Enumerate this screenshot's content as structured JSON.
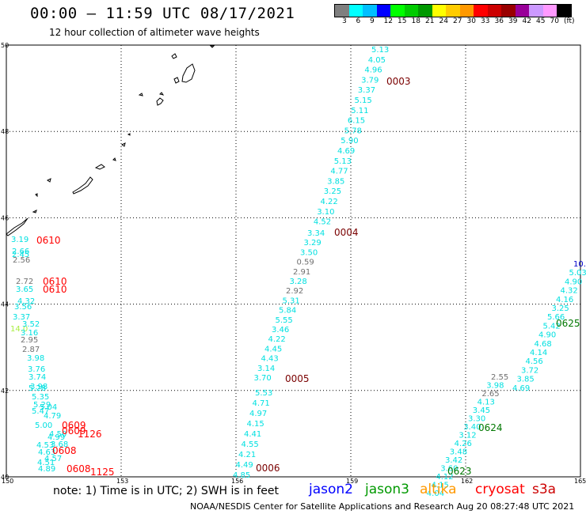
{
  "header": {
    "title": "00:00 – 11:59 UTC 08/17/2021",
    "subtitle": "12 hour collection of altimeter wave heights"
  },
  "colorbar": {
    "colors": [
      "#7f7f7f",
      "#00ffff",
      "#00bfff",
      "#0000ff",
      "#00ff00",
      "#00cc00",
      "#009900",
      "#ffff00",
      "#ffcc00",
      "#ff9900",
      "#ff0000",
      "#cc0000",
      "#990000",
      "#990099",
      "#cc99ff",
      "#ff99ff",
      "#000000"
    ],
    "labels": [
      "3",
      "6",
      "9",
      "12",
      "15",
      "18",
      "21",
      "24",
      "27",
      "30",
      "33",
      "36",
      "39",
      "42",
      "45",
      "70",
      "(ft)"
    ]
  },
  "map": {
    "lon_ticks": [
      "150",
      "153",
      "156",
      "159",
      "162",
      "165"
    ],
    "lat_ticks": [
      "50",
      "48",
      "46",
      "44",
      "42",
      "40"
    ],
    "coastline_color": "#000000"
  },
  "tracks": [
    {
      "id": "track-0003",
      "color": "#00e0e0",
      "label": "0003",
      "label_color": "#7a0000",
      "values": [
        "5.13",
        "4.05",
        "4.96",
        "3.79",
        "3.37",
        "5.15",
        "5.11",
        "6.15",
        "5.78",
        "5.90",
        "4.69",
        "5.13",
        "4.77",
        "3.85",
        "3.25",
        "4.22",
        "3.10",
        "4.52"
      ]
    },
    {
      "id": "track-0004",
      "color": "#00e0e0",
      "label": "0004",
      "label_color": "#7a0000",
      "values": [
        "3.34",
        "3.29",
        "3.50",
        "0.59",
        "2.91",
        "3.28",
        "2.92",
        "5.31",
        "5.84",
        "5.55",
        "3.46",
        "4.22",
        "4.45",
        "4.43",
        "3.14",
        "3.70"
      ]
    },
    {
      "id": "track-0005",
      "color": "#00e0e0",
      "label": "0005",
      "label_color": "#7a0000",
      "values": [
        "5.53",
        "4.71",
        "4.97",
        "4.15",
        "4.41",
        "4.55",
        "4.21",
        "4.49",
        "4.85"
      ]
    },
    {
      "id": "track-0006",
      "label": "0006",
      "label_color": "#7a0000"
    },
    {
      "id": "track-0625",
      "color": "#00e0e0",
      "label": "0625",
      "label_color": "#007700",
      "values": [
        "10.",
        "5.03",
        "4.90",
        "4.32",
        "4.16",
        "3.25",
        "5.66",
        "5.42",
        "4.90",
        "4.68",
        "4.14",
        "4.56",
        "3.72",
        "3.85",
        "4.69"
      ]
    },
    {
      "id": "track-0624",
      "color": "#00e0e0",
      "label": "0624",
      "label_color": "#007700",
      "values": [
        "2.55",
        "3.98",
        "2.65",
        "4.13",
        "3.45",
        "3.30",
        "3.40",
        "3.12",
        "4.26",
        "3.48",
        "3.42",
        "3.60",
        "4.12",
        "4.15",
        "4.04"
      ]
    },
    {
      "id": "track-0623",
      "label": "0623",
      "label_color": "#007700"
    },
    {
      "id": "west-values",
      "color": "#00e0e0",
      "values": [
        "3.19",
        "2.66",
        "2.45",
        "2.56",
        "2.72",
        "3.65",
        "4.32",
        "3.56",
        "3.37",
        "14.0",
        "3.52",
        "3.16",
        "2.95",
        "2.87",
        "3.98",
        "3.76",
        "3.74",
        "3.98",
        "5.28",
        "5.35",
        "5.29",
        "5.04",
        "5.47",
        "4.79",
        "5.00",
        "4.50",
        "4.99",
        "4.53",
        "3.68",
        "4.63",
        "4.57",
        "4.51",
        "4.89"
      ]
    },
    {
      "id": "west-labels",
      "label_color": "#ff0000",
      "labels": [
        "0610",
        "0610",
        "0610",
        "0609",
        "0609",
        "1126",
        "0608",
        "0608",
        "1125"
      ]
    }
  ],
  "footer": {
    "note": "note: 1) Time is in UTC; 2) SWH is in feet",
    "satellites": [
      {
        "name": "jason2",
        "color": "#0000ff"
      },
      {
        "name": "jason3",
        "color": "#009900"
      },
      {
        "name": "altika",
        "color": "#ff9900"
      },
      {
        "name": "cryosat",
        "color": "#ff0000"
      },
      {
        "name": "s3a",
        "color": "#cc0000"
      }
    ],
    "credit": "NOAA/NESDIS Center for Satellite Applications and Research    Aug 20 08:27:48 UTC 2021"
  }
}
